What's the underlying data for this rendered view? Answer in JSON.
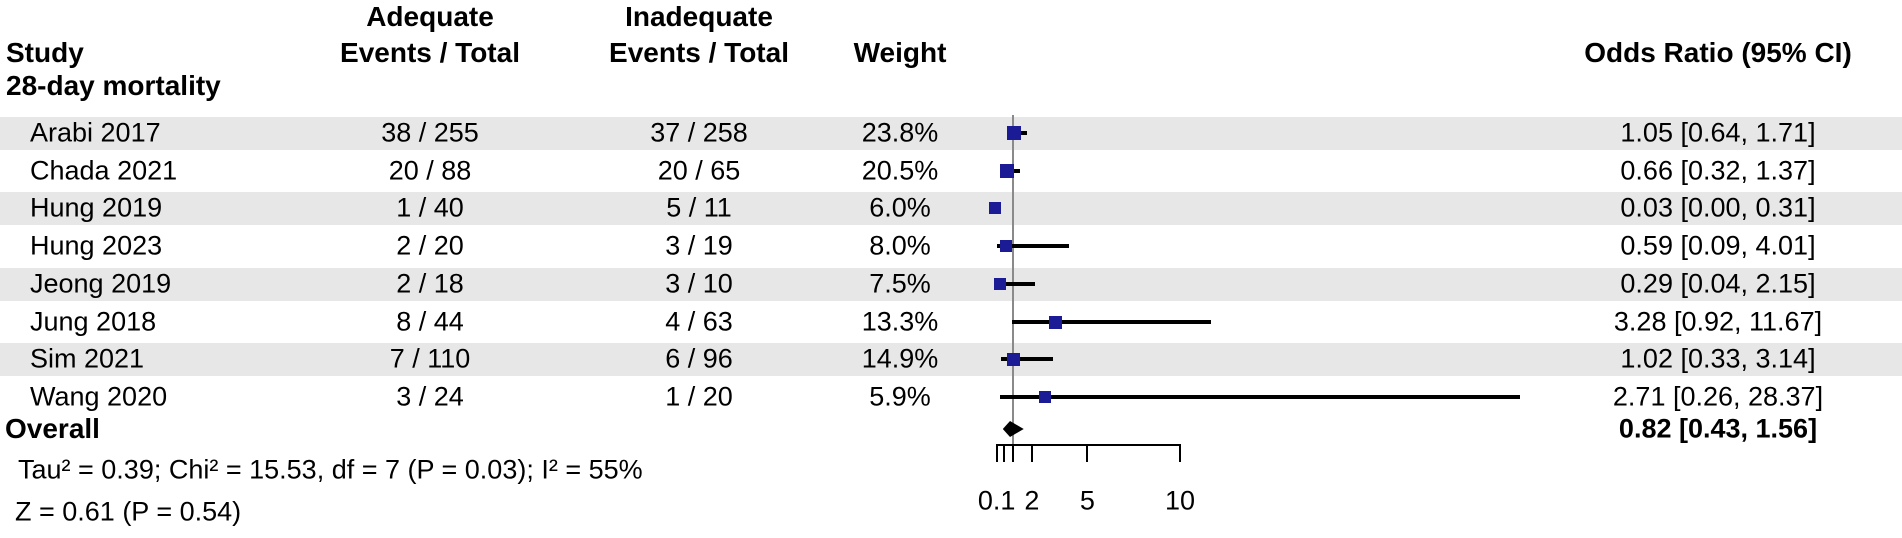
{
  "header": {
    "study": "Study",
    "adequate": "Adequate",
    "inadequate": "Inadequate",
    "events_total_1": "Events / Total",
    "events_total_2": "Events / Total",
    "weight": "Weight",
    "odds_ratio": "Odds Ratio (95% CI)"
  },
  "subgroup": {
    "label": "28-day mortality"
  },
  "colors": {
    "square": "#1b1b96",
    "ci_line": "#000000",
    "stripe": "#e7e7e7",
    "reference_line": "#8a8a8a",
    "diamond": "#000000",
    "text": "#000000",
    "background": "#ffffff"
  },
  "chart_data": {
    "type": "scatter",
    "subtype": "forest-plot",
    "title": "",
    "xlabel": "",
    "ylabel": "",
    "x_axis": {
      "scale": "linear",
      "min": 0.1,
      "max": 10,
      "ticks": [
        0.1,
        0.5,
        1,
        2,
        5,
        10
      ],
      "tick_labels": [
        "0.1",
        "",
        "",
        "2",
        "5",
        "10"
      ],
      "reference_line": 1
    },
    "subgroup": "28-day mortality",
    "studies": [
      {
        "study": "Arabi 2017",
        "adequate_label": "38 / 255",
        "adequate_events": 38,
        "adequate_total": 255,
        "inadequate_label": "37 / 258",
        "inadequate_events": 37,
        "inadequate_total": 258,
        "weight_label": "23.8%",
        "weight_pct": 23.8,
        "or": 1.05,
        "ci_low": 0.64,
        "ci_high": 1.71,
        "or_label": "1.05 [0.64, 1.71]"
      },
      {
        "study": "Chada 2021",
        "adequate_label": "20 / 88",
        "adequate_events": 20,
        "adequate_total": 88,
        "inadequate_label": "20 / 65",
        "inadequate_events": 20,
        "inadequate_total": 65,
        "weight_label": "20.5%",
        "weight_pct": 20.5,
        "or": 0.66,
        "ci_low": 0.32,
        "ci_high": 1.37,
        "or_label": "0.66 [0.32, 1.37]"
      },
      {
        "study": "Hung 2019",
        "adequate_label": "1 / 40",
        "adequate_events": 1,
        "adequate_total": 40,
        "inadequate_label": "5 / 11",
        "inadequate_events": 5,
        "inadequate_total": 11,
        "weight_label": "6.0%",
        "weight_pct": 6.0,
        "or": 0.03,
        "ci_low": 0.0,
        "ci_high": 0.31,
        "or_label": "0.03 [0.00, 0.31]"
      },
      {
        "study": "Hung 2023",
        "adequate_label": "2 / 20",
        "adequate_events": 2,
        "adequate_total": 20,
        "inadequate_label": "3 / 19",
        "inadequate_events": 3,
        "inadequate_total": 19,
        "weight_label": "8.0%",
        "weight_pct": 8.0,
        "or": 0.59,
        "ci_low": 0.09,
        "ci_high": 4.01,
        "or_label": "0.59 [0.09, 4.01]"
      },
      {
        "study": "Jeong 2019",
        "adequate_label": "2 / 18",
        "adequate_events": 2,
        "adequate_total": 18,
        "inadequate_label": "3 / 10",
        "inadequate_events": 3,
        "inadequate_total": 10,
        "weight_label": "7.5%",
        "weight_pct": 7.5,
        "or": 0.29,
        "ci_low": 0.04,
        "ci_high": 2.15,
        "or_label": "0.29 [0.04, 2.15]"
      },
      {
        "study": "Jung 2018",
        "adequate_label": "8 / 44",
        "adequate_events": 8,
        "adequate_total": 44,
        "inadequate_label": "4 / 63",
        "inadequate_events": 4,
        "inadequate_total": 63,
        "weight_label": "13.3%",
        "weight_pct": 13.3,
        "or": 3.28,
        "ci_low": 0.92,
        "ci_high": 11.67,
        "or_label": "3.28 [0.92, 11.67]"
      },
      {
        "study": "Sim 2021",
        "adequate_label": "7 / 110",
        "adequate_events": 7,
        "adequate_total": 110,
        "inadequate_label": "6 / 96",
        "inadequate_events": 6,
        "inadequate_total": 96,
        "weight_label": "14.9%",
        "weight_pct": 14.9,
        "or": 1.02,
        "ci_low": 0.33,
        "ci_high": 3.14,
        "or_label": "1.02 [0.33, 3.14]"
      },
      {
        "study": "Wang 2020",
        "adequate_label": "3 / 24",
        "adequate_events": 3,
        "adequate_total": 24,
        "inadequate_label": "1 / 20",
        "inadequate_events": 1,
        "inadequate_total": 20,
        "weight_label": "5.9%",
        "weight_pct": 5.9,
        "or": 2.71,
        "ci_low": 0.26,
        "ci_high": 28.37,
        "or_label": "2.71 [0.26, 28.37]"
      }
    ],
    "overall": {
      "label": "Overall",
      "or": 0.82,
      "ci_low": 0.43,
      "ci_high": 1.56,
      "or_label": "0.82 [0.43, 1.56]"
    },
    "heterogeneity": "Tau² = 0.39; Chi² = 15.53, df = 7 (P = 0.03); I² = 55%",
    "overall_effect_test": "Z = 0.61 (P = 0.54)"
  }
}
